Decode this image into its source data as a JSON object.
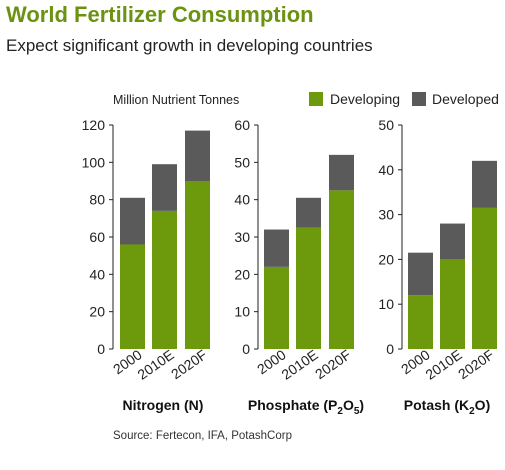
{
  "title": "World Fertilizer Consumption",
  "subtitle": "Expect significant growth in developing countries",
  "unit_label": "Million Nutrient Tonnes",
  "source": "Source: Fertecon, IFA, PotashCorp",
  "colors": {
    "developing": "#6c9a0c",
    "developed": "#5a5a5a"
  },
  "legend": [
    {
      "name": "Developing",
      "color_key": "developing"
    },
    {
      "name": "Developed",
      "color_key": "developed"
    }
  ],
  "chart_data": [
    {
      "type": "bar",
      "stacked": true,
      "title": "Nitrogen (N)",
      "categories": [
        "2000",
        "2010E",
        "2020F"
      ],
      "ylim": [
        0,
        120
      ],
      "yticks": [
        0,
        20,
        40,
        60,
        80,
        100,
        120
      ],
      "series": [
        {
          "name": "Developing",
          "values": [
            56,
            74,
            90
          ]
        },
        {
          "name": "Developed",
          "values": [
            25,
            25,
            27
          ]
        }
      ]
    },
    {
      "type": "bar",
      "stacked": true,
      "title": "Phosphate (P2O5)",
      "title_parts": {
        "base": "Phosphate (P",
        "sub1": "2",
        "mid": "O",
        "sub2": "5",
        "end": ")"
      },
      "categories": [
        "2000",
        "2010E",
        "2020F"
      ],
      "ylim": [
        0,
        60
      ],
      "yticks": [
        0,
        10,
        20,
        30,
        40,
        50,
        60
      ],
      "series": [
        {
          "name": "Developing",
          "values": [
            22,
            32.5,
            42.5
          ]
        },
        {
          "name": "Developed",
          "values": [
            10,
            8,
            9.5
          ]
        }
      ]
    },
    {
      "type": "bar",
      "stacked": true,
      "title": "Potash (K2O)",
      "title_parts": {
        "base": "Potash (K",
        "sub1": "2",
        "mid": "O",
        "sub2": "",
        "end": ")"
      },
      "categories": [
        "2000",
        "2010E",
        "2020F"
      ],
      "ylim": [
        0,
        50
      ],
      "yticks": [
        0,
        10,
        20,
        30,
        40,
        50
      ],
      "series": [
        {
          "name": "Developing",
          "values": [
            12,
            20,
            31.5
          ]
        },
        {
          "name": "Developed",
          "values": [
            9.5,
            8,
            10.5
          ]
        }
      ]
    }
  ]
}
